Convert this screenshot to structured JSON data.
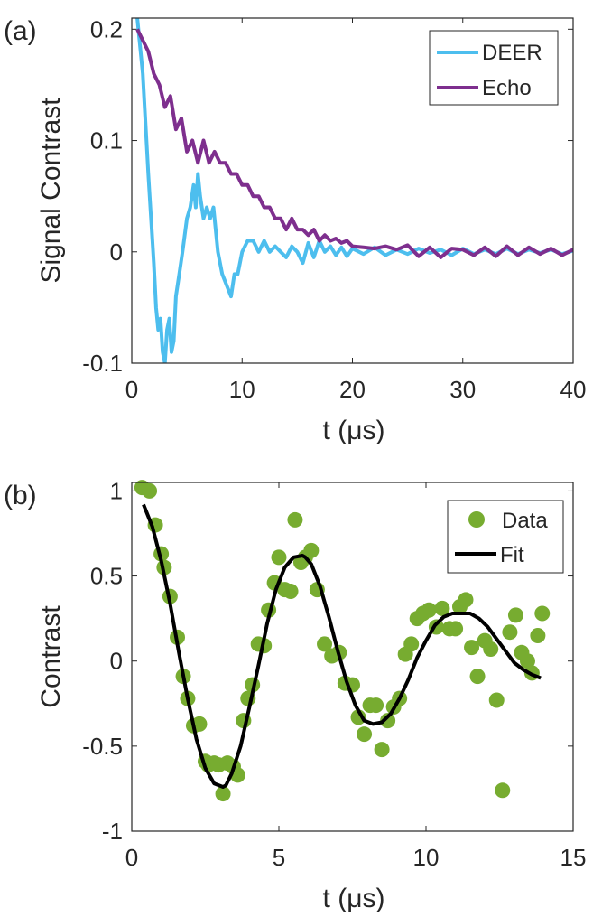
{
  "chart_data": [
    {
      "panel_label": "(a)",
      "type": "line",
      "xlabel": "t (μs)",
      "ylabel": "Signal Contrast",
      "xlim": [
        0,
        40
      ],
      "ylim": [
        -0.1,
        0.21
      ],
      "xticks": [
        0,
        10,
        20,
        30,
        40
      ],
      "xtick_labels": [
        "0",
        "10",
        "20",
        "30",
        "40"
      ],
      "yticks": [
        -0.1,
        0,
        0.1,
        0.2
      ],
      "ytick_labels": [
        "-0.1",
        "0",
        "0.1",
        "0.2"
      ],
      "legend_position": "top-right",
      "series": [
        {
          "name": "DEER",
          "color": "#4DBEEE",
          "x": [
            0.5,
            1.0,
            1.5,
            2.0,
            2.2,
            2.4,
            2.6,
            2.8,
            3.0,
            3.2,
            3.4,
            3.6,
            3.8,
            4.0,
            4.3,
            4.6,
            5.0,
            5.3,
            5.6,
            5.8,
            6.0,
            6.2,
            6.5,
            6.8,
            7.1,
            7.4,
            7.8,
            8.2,
            8.6,
            9.0,
            9.3,
            9.6,
            10.0,
            10.5,
            11.0,
            11.5,
            12.0,
            12.5,
            13.0,
            13.5,
            14.0,
            14.5,
            15.0,
            15.5,
            16.0,
            16.5,
            17.0,
            17.5,
            18.0,
            18.5,
            19.0,
            19.5,
            20.0,
            21.0,
            22.0,
            23.0,
            24.0,
            25.0,
            26.0,
            27.0,
            28.0,
            29.0,
            30.0,
            31.0,
            32.0,
            33.0,
            34.0,
            35.0,
            36.0,
            37.0,
            38.0,
            39.0,
            40.0
          ],
          "y": [
            0.21,
            0.16,
            0.07,
            -0.01,
            -0.05,
            -0.07,
            -0.06,
            -0.09,
            -0.1,
            -0.07,
            -0.06,
            -0.09,
            -0.08,
            -0.04,
            -0.02,
            0.0,
            0.03,
            0.04,
            0.06,
            0.04,
            0.07,
            0.05,
            0.03,
            0.04,
            0.03,
            0.04,
            0.0,
            -0.02,
            -0.03,
            -0.04,
            -0.02,
            -0.02,
            0.0,
            0.01,
            0.01,
            0.0,
            0.01,
            0.0,
            0.005,
            0.0,
            -0.005,
            0.005,
            0.0,
            -0.01,
            0.008,
            -0.005,
            0.01,
            0.0,
            0.005,
            -0.003,
            0.004,
            -0.004,
            0.003,
            -0.002,
            0.004,
            -0.003,
            0.002,
            -0.002,
            0.003,
            -0.001,
            0.002,
            -0.003,
            0.003,
            -0.002,
            0.002,
            -0.002,
            0.003,
            -0.002,
            0.002,
            -0.001,
            0.002,
            -0.002,
            0.001
          ]
        },
        {
          "name": "Echo",
          "color": "#7E2F8E",
          "x": [
            0.5,
            1.0,
            1.5,
            2.0,
            2.5,
            3.0,
            3.5,
            4.0,
            4.5,
            5.0,
            5.5,
            6.0,
            6.5,
            7.0,
            7.5,
            8.0,
            8.5,
            9.0,
            9.5,
            10.0,
            10.5,
            11.0,
            11.5,
            12.0,
            12.5,
            13.0,
            13.5,
            14.0,
            14.5,
            15.0,
            15.5,
            16.0,
            16.5,
            17.0,
            17.5,
            18.0,
            18.5,
            19.0,
            19.5,
            20.0,
            21.0,
            22.0,
            23.0,
            24.0,
            25.0,
            26.0,
            27.0,
            28.0,
            29.0,
            30.0,
            31.0,
            32.0,
            33.0,
            34.0,
            35.0,
            36.0,
            37.0,
            38.0,
            39.0,
            40.0
          ],
          "y": [
            0.2,
            0.19,
            0.18,
            0.16,
            0.15,
            0.13,
            0.14,
            0.11,
            0.12,
            0.09,
            0.1,
            0.08,
            0.1,
            0.08,
            0.09,
            0.08,
            0.08,
            0.07,
            0.07,
            0.06,
            0.06,
            0.05,
            0.05,
            0.04,
            0.04,
            0.03,
            0.03,
            0.02,
            0.03,
            0.02,
            0.02,
            0.015,
            0.02,
            0.01,
            0.015,
            0.01,
            0.012,
            0.008,
            0.01,
            0.005,
            0.004,
            0.003,
            0.005,
            0.002,
            0.006,
            -0.004,
            0.004,
            -0.005,
            0.003,
            0.002,
            -0.003,
            0.004,
            -0.004,
            0.005,
            -0.003,
            0.004,
            -0.002,
            0.003,
            -0.003,
            0.002
          ]
        }
      ]
    },
    {
      "panel_label": "(b)",
      "type": "scatter",
      "xlabel": "t (μs)",
      "ylabel": "Contrast",
      "xlim": [
        0,
        15
      ],
      "ylim": [
        -1,
        1.05
      ],
      "xticks": [
        0,
        5,
        10,
        15
      ],
      "xtick_labels": [
        "0",
        "5",
        "10",
        "15"
      ],
      "yticks": [
        -1,
        -0.5,
        0,
        0.5,
        1
      ],
      "ytick_labels": [
        "-1",
        "-0.5",
        "0",
        "0.5",
        "1"
      ],
      "legend_position": "top-right",
      "series": [
        {
          "name": "Data",
          "color": "#77AC30",
          "marker": "circle",
          "x": [
            0.35,
            0.6,
            0.8,
            1.0,
            1.1,
            1.3,
            1.55,
            1.75,
            1.9,
            2.1,
            2.3,
            2.5,
            2.6,
            2.8,
            2.95,
            3.1,
            3.25,
            3.45,
            3.6,
            3.8,
            3.95,
            4.1,
            4.3,
            4.5,
            4.65,
            4.85,
            5.0,
            5.2,
            5.4,
            5.55,
            5.75,
            5.9,
            6.1,
            6.3,
            6.55,
            6.8,
            7.05,
            7.25,
            7.5,
            7.7,
            7.9,
            8.1,
            8.3,
            8.5,
            8.7,
            8.9,
            9.1,
            9.3,
            9.5,
            9.7,
            9.9,
            10.1,
            10.35,
            10.55,
            10.8,
            11.0,
            11.15,
            11.35,
            11.55,
            11.75,
            12.0,
            12.2,
            12.4,
            12.6,
            12.85,
            13.05,
            13.25,
            13.45,
            13.6,
            13.8,
            13.95
          ],
          "y": [
            1.02,
            1.0,
            0.8,
            0.63,
            0.55,
            0.38,
            0.14,
            -0.09,
            -0.22,
            -0.38,
            -0.37,
            -0.59,
            -0.61,
            -0.6,
            -0.61,
            -0.78,
            -0.6,
            -0.62,
            -0.67,
            -0.35,
            -0.22,
            -0.14,
            0.1,
            0.09,
            0.3,
            0.46,
            0.61,
            0.42,
            0.41,
            0.83,
            0.58,
            0.61,
            0.65,
            0.42,
            0.1,
            0.03,
            0.05,
            -0.13,
            -0.14,
            -0.33,
            -0.43,
            -0.26,
            -0.26,
            -0.52,
            -0.35,
            -0.27,
            -0.22,
            0.04,
            0.1,
            0.25,
            0.28,
            0.3,
            0.2,
            0.31,
            0.19,
            0.19,
            0.32,
            0.36,
            0.08,
            -0.09,
            0.12,
            0.07,
            -0.23,
            -0.76,
            0.17,
            0.27,
            0.05,
            0.0,
            -0.07,
            0.15,
            0.28
          ]
        },
        {
          "name": "Fit",
          "color": "#000000",
          "x": [
            0.4,
            0.7,
            1.0,
            1.3,
            1.6,
            1.9,
            2.2,
            2.5,
            2.8,
            3.1,
            3.2,
            3.4,
            3.7,
            4.0,
            4.3,
            4.6,
            4.9,
            5.2,
            5.5,
            5.8,
            5.9,
            6.1,
            6.4,
            6.7,
            7.0,
            7.3,
            7.6,
            7.9,
            8.2,
            8.5,
            8.8,
            9.1,
            9.4,
            9.7,
            10.0,
            10.3,
            10.6,
            10.9,
            11.2,
            11.5,
            11.6,
            11.8,
            12.1,
            12.4,
            12.7,
            13.0,
            13.3,
            13.6,
            13.9
          ],
          "y": [
            0.92,
            0.79,
            0.59,
            0.34,
            0.05,
            -0.22,
            -0.46,
            -0.63,
            -0.72,
            -0.74,
            -0.73,
            -0.66,
            -0.5,
            -0.27,
            -0.03,
            0.22,
            0.42,
            0.55,
            0.61,
            0.62,
            0.61,
            0.57,
            0.44,
            0.26,
            0.06,
            -0.12,
            -0.26,
            -0.35,
            -0.37,
            -0.36,
            -0.31,
            -0.22,
            -0.11,
            0.02,
            0.12,
            0.21,
            0.26,
            0.28,
            0.28,
            0.28,
            0.27,
            0.25,
            0.2,
            0.13,
            0.06,
            -0.01,
            -0.05,
            -0.08,
            -0.1
          ]
        }
      ]
    }
  ]
}
